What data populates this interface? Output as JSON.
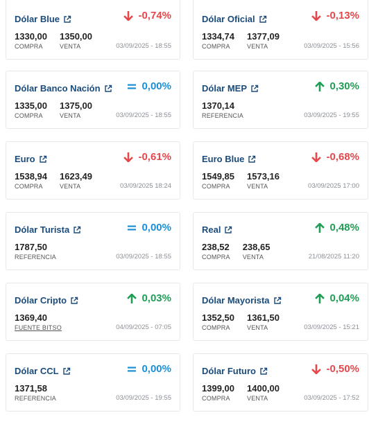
{
  "colors": {
    "title": "#1a4b7a",
    "down": "#e5474b",
    "up": "#1f9d55",
    "neutral": "#1b8ed8"
  },
  "cards": [
    {
      "title": "Dólar Blue",
      "trend": "down",
      "change": "-0,74%",
      "v1": "1330,00",
      "l1": "COMPRA",
      "v2": "1350,00",
      "l2": "VENTA",
      "date": "03/09/2025 - 18:55"
    },
    {
      "title": "Dólar Oficial",
      "trend": "down",
      "change": "-0,13%",
      "v1": "1334,74",
      "l1": "COMPRA",
      "v2": "1377,09",
      "l2": "VENTA",
      "date": "03/09/2025 - 15:56"
    },
    {
      "title": "Dólar Banco Nación",
      "trend": "neutral",
      "change": "0,00%",
      "v1": "1335,00",
      "l1": "COMPRA",
      "v2": "1375,00",
      "l2": "VENTA",
      "date": "03/09/2025 - 18:55"
    },
    {
      "title": "Dólar MEP",
      "trend": "up",
      "change": "0,30%",
      "v1": "1370,14",
      "l1": "REFERENCIA",
      "date": "03/09/2025 - 19:55"
    },
    {
      "title": "Euro",
      "trend": "down",
      "change": "-0,61%",
      "v1": "1538,94",
      "l1": "COMPRA",
      "v2": "1623,49",
      "l2": "VENTA",
      "date": "03/09/2025 18:24"
    },
    {
      "title": "Euro Blue",
      "trend": "down",
      "change": "-0,68%",
      "v1": "1549,85",
      "l1": "COMPRA",
      "v2": "1573,16",
      "l2": "VENTA",
      "date": "03/09/2025 17:00"
    },
    {
      "title": "Dólar Turista",
      "trend": "neutral",
      "change": "0,00%",
      "v1": "1787,50",
      "l1": "REFERENCIA",
      "date": "03/09/2025 - 18:55"
    },
    {
      "title": "Real",
      "trend": "up",
      "change": "0,48%",
      "v1": "238,52",
      "l1": "COMPRA",
      "v2": "238,65",
      "l2": "VENTA",
      "date": "21/08/2025 11:20"
    },
    {
      "title": "Dólar Cripto",
      "trend": "up",
      "change": "0,03%",
      "v1": "1369,40",
      "l1": "FUENTE BITSO",
      "l1_link": true,
      "date": "04/09/2025 - 07:05"
    },
    {
      "title": "Dólar Mayorista",
      "trend": "up",
      "change": "0,04%",
      "v1": "1352,50",
      "l1": "COMPRA",
      "v2": "1361,50",
      "l2": "VENTA",
      "date": "03/09/2025 - 15:21"
    },
    {
      "title": "Dólar CCL",
      "trend": "neutral",
      "change": "0,00%",
      "v1": "1371,58",
      "l1": "REFERENCIA",
      "date": "03/09/2025 - 19:55"
    },
    {
      "title": "Dólar Futuro",
      "trend": "down",
      "change": "-0,50%",
      "v1": "1399,00",
      "l1": "COMPRA",
      "v2": "1400,00",
      "l2": "VENTA",
      "date": "03/09/2025 - 17:52"
    }
  ]
}
